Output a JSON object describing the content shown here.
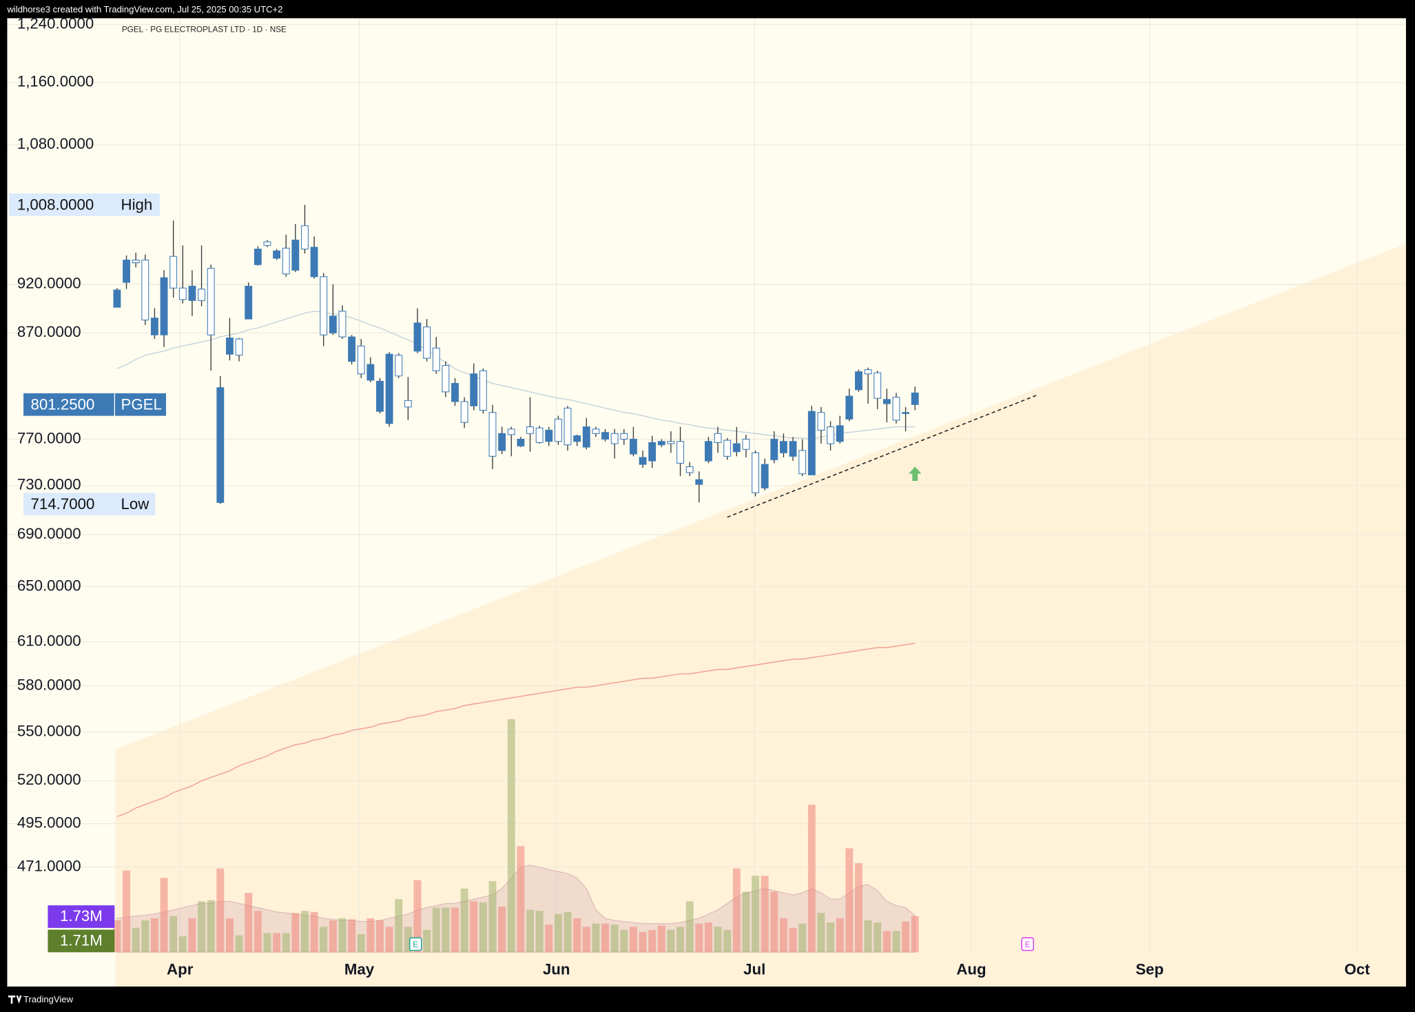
{
  "header": "wildhorse3 created with TradingView.com, Jul 25, 2025 00:35 UTC+2",
  "footer": "TradingView",
  "chart_data": {
    "type": "candlestick",
    "title": "PGEL · PG ELECTROPLAST LTD · 1D · NSE",
    "log_scale": true,
    "grid": true,
    "ylim": [
      427,
      1249
    ],
    "yticks": [
      {
        "value": 1240,
        "label": "1,240.0000"
      },
      {
        "value": 1160,
        "label": "1,160.0000"
      },
      {
        "value": 1080,
        "label": "1,080.0000"
      },
      {
        "value": 920,
        "label": "920.0000"
      },
      {
        "value": 870,
        "label": "870.0000"
      },
      {
        "value": 770,
        "label": "770.0000"
      },
      {
        "value": 730,
        "label": "730.0000"
      },
      {
        "value": 690,
        "label": "690.0000"
      },
      {
        "value": 650,
        "label": "650.0000"
      },
      {
        "value": 610,
        "label": "610.0000"
      },
      {
        "value": 580,
        "label": "580.0000"
      },
      {
        "value": 550,
        "label": "550.0000"
      },
      {
        "value": 520,
        "label": "520.0000"
      },
      {
        "value": 495,
        "label": "495.0000"
      },
      {
        "value": 471,
        "label": "471.0000"
      }
    ],
    "xlim": [
      -11.7,
      137.3
    ],
    "xticks": [
      {
        "value": 6.7,
        "label": "Apr"
      },
      {
        "value": 25.8,
        "label": "May"
      },
      {
        "value": 46.8,
        "label": "Jun"
      },
      {
        "value": 67.9,
        "label": "Jul"
      },
      {
        "value": 91.0,
        "label": "Aug"
      },
      {
        "value": 110.0,
        "label": "Sep"
      },
      {
        "value": 132.1,
        "label": "Oct"
      }
    ],
    "up_color": "#ffffff",
    "down_color": "#3d7ab5",
    "border_color": "#3d7ab5",
    "wick_color": "#333333",
    "candles": {
      "open": [
        914,
        946,
        943,
        883,
        885,
        927,
        916,
        904,
        918,
        903,
        868,
        817,
        865,
        848,
        918,
        958,
        962,
        956,
        931,
        968,
        958,
        960,
        868,
        887,
        866,
        866,
        830,
        839,
        823,
        849,
        828,
        799,
        880,
        845,
        833,
        813,
        821,
        785,
        830,
        796,
        755,
        775,
        774,
        770,
        775,
        767,
        778,
        768,
        765,
        773,
        781,
        775,
        776,
        766,
        770,
        770,
        754,
        767,
        768,
        766,
        749,
        741,
        735,
        768,
        767,
        755,
        766,
        761,
        724,
        748,
        770,
        768,
        768,
        740,
        795,
        778,
        766,
        782,
        809,
        832,
        830,
        807,
        806,
        787,
        794,
        812
      ],
      "high": [
        916,
        951,
        954,
        952,
        895,
        935,
        990,
        962,
        935,
        962,
        941,
        828,
        885,
        865,
        922,
        961,
        968,
        958,
        974,
        986,
        1008,
        972,
        932,
        920,
        898,
        868,
        864,
        846,
        826,
        851,
        850,
        827,
        895,
        884,
        866,
        842,
        826,
        808,
        840,
        835,
        801,
        781,
        781,
        772,
        808,
        782,
        781,
        791,
        800,
        774,
        789,
        781,
        779,
        779,
        779,
        781,
        760,
        773,
        770,
        777,
        781,
        750,
        742,
        772,
        781,
        771,
        781,
        774,
        760,
        753,
        777,
        775,
        772,
        770,
        800,
        799,
        786,
        791,
        816,
        834,
        836,
        833,
        816,
        812,
        799,
        818
      ],
      "low": [
        896,
        915,
        938,
        878,
        864,
        856,
        906,
        900,
        887,
        897,
        833,
        714.7,
        843,
        842,
        884,
        940,
        960,
        946,
        928,
        933,
        953,
        926,
        857,
        868,
        864,
        839,
        826,
        822,
        793,
        781,
        826,
        787,
        850,
        842,
        830,
        808,
        800,
        780,
        796,
        793,
        744,
        757,
        755,
        763,
        759,
        766,
        764,
        765,
        760,
        764,
        761,
        772,
        768,
        753,
        765,
        755,
        745,
        745,
        763,
        758,
        738,
        738,
        716,
        749,
        758,
        752,
        755,
        754,
        721,
        726,
        749,
        754,
        751,
        738,
        739,
        766,
        760,
        766,
        786,
        813,
        802,
        797,
        785,
        784,
        777,
        796
      ],
      "close": [
        896,
        922,
        946,
        946,
        868,
        868,
        950,
        916,
        903,
        915,
        937,
        716,
        849,
        864,
        884,
        941,
        966,
        948,
        959,
        935,
        984,
        928,
        928,
        870,
        892,
        842,
        857,
        824,
        795,
        784,
        848,
        805,
        852,
        876,
        855,
        838,
        804,
        804,
        800,
        833,
        794,
        760,
        779,
        764,
        781,
        780,
        768,
        788,
        798,
        768,
        763,
        779,
        770,
        775,
        775,
        757,
        748,
        751,
        765,
        768,
        768,
        746,
        731,
        751,
        775,
        769,
        759,
        770,
        758,
        728,
        752,
        758,
        755,
        760,
        739,
        794,
        781,
        768,
        788,
        815,
        834,
        831,
        802,
        808,
        793,
        801.25
      ]
    },
    "ma_lines": [
      {
        "color": "#c9d6de",
        "values": [
          835,
          839,
          844,
          848,
          850,
          852,
          855,
          857,
          859,
          861,
          863,
          866,
          868,
          870,
          873,
          875,
          878,
          881,
          884,
          887,
          890,
          892,
          891,
          889,
          888,
          885,
          882,
          878,
          875,
          871,
          867,
          863,
          859,
          853,
          847,
          841,
          835,
          831,
          828,
          824,
          821,
          819,
          817,
          815,
          813,
          811,
          809,
          807,
          806,
          804,
          802,
          800,
          798,
          796,
          794,
          793,
          791,
          789,
          787,
          786,
          784,
          783,
          781,
          780,
          779,
          778,
          777,
          776,
          775,
          774,
          773,
          772,
          771,
          771,
          770,
          772,
          773,
          775,
          776,
          777,
          778,
          779,
          780,
          781,
          781,
          781
        ]
      },
      {
        "color": "#f2a49a",
        "values": [
          499,
          501,
          504,
          506,
          508,
          510,
          513,
          515,
          517,
          520,
          522,
          524,
          526,
          529,
          531,
          533,
          535,
          538,
          540,
          542,
          543,
          545,
          546,
          548,
          549,
          551,
          552,
          553,
          555,
          556,
          557,
          559,
          560,
          561,
          563,
          564,
          565,
          567,
          568,
          569,
          570,
          571,
          572,
          573,
          574,
          575,
          576,
          577,
          578,
          579,
          579,
          580,
          581,
          582,
          583,
          584,
          585,
          585,
          586,
          587,
          588,
          588,
          589,
          590,
          591,
          591,
          592,
          593,
          594,
          595,
          596,
          597,
          598,
          598,
          599,
          600,
          601,
          602,
          603,
          604,
          605,
          606,
          606,
          607,
          608,
          609
        ]
      }
    ],
    "volume": {
      "lim": [
        0,
        44
      ],
      "up_color": "rgba(160,178,110,0.55)",
      "down_color": "rgba(242,140,130,0.6)",
      "ma_color": "rgba(200,160,175,0.28)",
      "values": [
        1.5,
        3.85,
        1.15,
        1.5,
        1.6,
        3.5,
        1.7,
        0.75,
        1.6,
        2.4,
        2.45,
        3.95,
        1.6,
        0.8,
        2.8,
        1.95,
        0.9,
        0.9,
        0.9,
        1.85,
        1.95,
        1.9,
        1.2,
        1.5,
        1.6,
        1.55,
        0.85,
        1.6,
        1.5,
        1.2,
        2.5,
        1.2,
        3.4,
        1.05,
        2.1,
        2.1,
        2.1,
        3.0,
        2.4,
        2.35,
        3.35,
        2.15,
        10.98,
        5.0,
        2.0,
        1.95,
        1.3,
        1.8,
        1.9,
        1.6,
        1.2,
        1.35,
        1.35,
        1.3,
        1.05,
        1.2,
        0.95,
        1.05,
        1.25,
        1.05,
        1.2,
        2.4,
        1.35,
        1.4,
        1.2,
        1.05,
        3.95,
        2.85,
        3.6,
        3.6,
        2.85,
        1.6,
        1.15,
        1.35,
        6.95,
        1.85,
        1.4,
        1.6,
        4.9,
        4.2,
        1.5,
        1.4,
        1.0,
        1.0,
        1.45,
        1.71
      ],
      "ma_values": [
        1.6,
        1.65,
        1.7,
        1.75,
        1.8,
        1.9,
        2.0,
        2.1,
        2.2,
        2.3,
        2.3,
        2.4,
        2.4,
        2.3,
        2.2,
        2.1,
        2.0,
        1.9,
        1.85,
        1.8,
        1.75,
        1.7,
        1.6,
        1.55,
        1.5,
        1.5,
        1.45,
        1.45,
        1.5,
        1.6,
        1.7,
        1.8,
        2.0,
        2.1,
        2.2,
        2.3,
        2.3,
        2.4,
        2.5,
        2.6,
        2.7,
        3.0,
        3.5,
        4.0,
        4.1,
        4.0,
        3.9,
        3.8,
        3.7,
        3.5,
        3.0,
        2.0,
        1.6,
        1.5,
        1.45,
        1.4,
        1.35,
        1.35,
        1.35,
        1.35,
        1.4,
        1.5,
        1.6,
        1.8,
        2.0,
        2.3,
        2.6,
        2.8,
        2.9,
        3.0,
        2.9,
        2.8,
        2.7,
        2.8,
        3.0,
        2.8,
        2.5,
        2.5,
        2.8,
        3.1,
        3.2,
        2.9,
        2.4,
        2.2,
        2.1,
        1.73
      ],
      "labels": [
        {
          "value": 1.73,
          "label": "1.73M",
          "color": "#7c3aed"
        },
        {
          "value": 1.71,
          "label": "1.71M",
          "color": "#5e7f2b"
        }
      ]
    },
    "price_labels": [
      {
        "value": 1008,
        "label": "1,008.0000",
        "name": "High",
        "bg": "#dbeafc",
        "fg": "#111111"
      },
      {
        "value": 801.25,
        "label": "801.2500",
        "name": "PGEL",
        "bg": "#3d7ab5",
        "fg": "#ffffff"
      },
      {
        "value": 714.7,
        "label": "714.7000",
        "name": "Low",
        "bg": "#dbeafc",
        "fg": "#111111"
      }
    ],
    "trend_line": {
      "x": [
        65,
        98
      ],
      "y": [
        704,
        810
      ],
      "color": "#222222"
    },
    "band": {
      "x": [
        -0.2,
        137.3
      ],
      "y": [
        539,
        964
      ],
      "color": "#fff2d9"
    },
    "signal": {
      "x": 85,
      "y": 740,
      "color": "#6cc070"
    },
    "earnings": [
      {
        "x": 31.8,
        "label": "E",
        "color": "#26a69a"
      },
      {
        "x": 97,
        "label": "E",
        "color": "#d946ef"
      }
    ]
  }
}
